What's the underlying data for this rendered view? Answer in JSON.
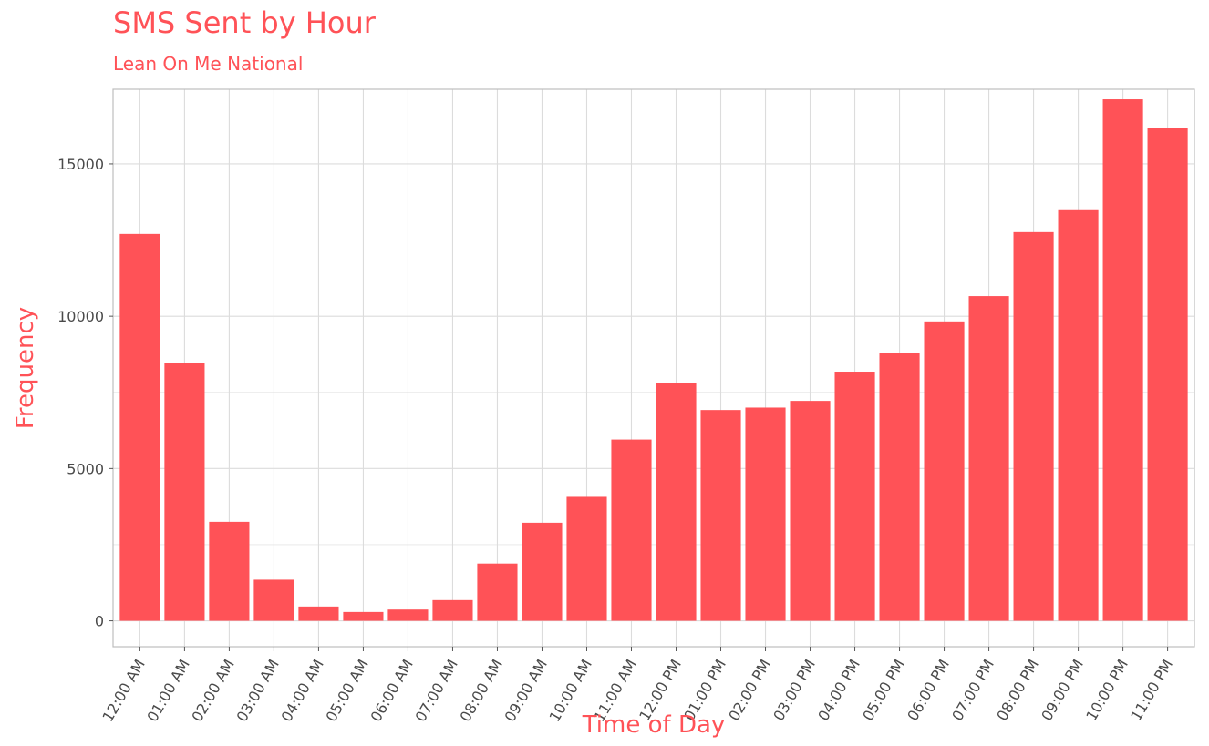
{
  "chart_data": {
    "type": "bar",
    "title": "SMS Sent by Hour",
    "subtitle": "Lean On Me National",
    "xlabel": "Time of Day",
    "ylabel": "Frequency",
    "categories": [
      "12:00 AM",
      "01:00 AM",
      "02:00 AM",
      "03:00 AM",
      "04:00 AM",
      "05:00 AM",
      "06:00 AM",
      "07:00 AM",
      "08:00 AM",
      "09:00 AM",
      "10:00 AM",
      "11:00 AM",
      "12:00 PM",
      "01:00 PM",
      "02:00 PM",
      "03:00 PM",
      "04:00 PM",
      "05:00 PM",
      "06:00 PM",
      "07:00 PM",
      "08:00 PM",
      "09:00 PM",
      "10:00 PM",
      "11:00 PM"
    ],
    "values": [
      12700,
      8450,
      3250,
      1350,
      470,
      290,
      370,
      680,
      1880,
      3220,
      4070,
      5950,
      7800,
      6920,
      7000,
      7220,
      8180,
      8800,
      9830,
      10660,
      12760,
      13480,
      17120,
      16190
    ],
    "yticks": [
      0,
      5000,
      10000,
      15000
    ],
    "ylim": [
      -850,
      17450
    ],
    "grid": true,
    "colors": {
      "bar": "#ff5257",
      "title": "#ff5257",
      "grid": "#dcdcdc",
      "panel_border": "#bdbdbd"
    }
  }
}
